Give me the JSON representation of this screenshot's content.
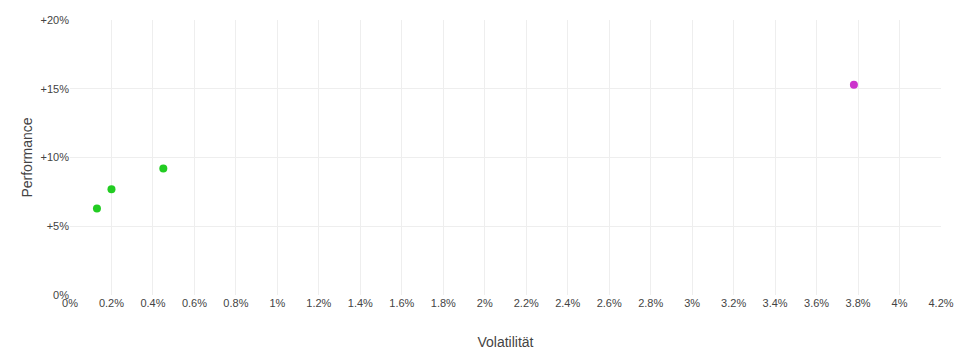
{
  "chart_data": {
    "type": "scatter",
    "xlabel": "Volatilität",
    "ylabel": "Performance",
    "xlim": [
      0,
      0.042
    ],
    "ylim": [
      0,
      0.2
    ],
    "xticks": [
      {
        "value": 0.0,
        "label": "0%"
      },
      {
        "value": 0.002,
        "label": "0.2%"
      },
      {
        "value": 0.004,
        "label": "0.4%"
      },
      {
        "value": 0.006,
        "label": "0.6%"
      },
      {
        "value": 0.008,
        "label": "0.8%"
      },
      {
        "value": 0.01,
        "label": "1%"
      },
      {
        "value": 0.012,
        "label": "1.2%"
      },
      {
        "value": 0.014,
        "label": "1.4%"
      },
      {
        "value": 0.016,
        "label": "1.6%"
      },
      {
        "value": 0.018,
        "label": "1.8%"
      },
      {
        "value": 0.02,
        "label": "2%"
      },
      {
        "value": 0.022,
        "label": "2.2%"
      },
      {
        "value": 0.024,
        "label": "2.4%"
      },
      {
        "value": 0.026,
        "label": "2.6%"
      },
      {
        "value": 0.028,
        "label": "2.8%"
      },
      {
        "value": 0.03,
        "label": "3%"
      },
      {
        "value": 0.032,
        "label": "3.2%"
      },
      {
        "value": 0.034,
        "label": "3.4%"
      },
      {
        "value": 0.036,
        "label": "3.6%"
      },
      {
        "value": 0.038,
        "label": "3.8%"
      },
      {
        "value": 0.04,
        "label": "4%"
      },
      {
        "value": 0.042,
        "label": "4.2%"
      }
    ],
    "yticks": [
      {
        "value": 0.0,
        "label": "0%"
      },
      {
        "value": 0.05,
        "label": "+5%"
      },
      {
        "value": 0.1,
        "label": "+10%"
      },
      {
        "value": 0.15,
        "label": "+15%"
      },
      {
        "value": 0.2,
        "label": "+20%"
      }
    ],
    "grid": true,
    "series": [
      {
        "color": "#22cc22",
        "marker": "circle",
        "x": [
          0.0013,
          0.002,
          0.0045
        ],
        "values": [
          0.063,
          0.077,
          0.092
        ]
      },
      {
        "color": "#cc33cc",
        "marker": "circle",
        "x": [
          0.0378
        ],
        "values": [
          0.153
        ]
      }
    ]
  }
}
